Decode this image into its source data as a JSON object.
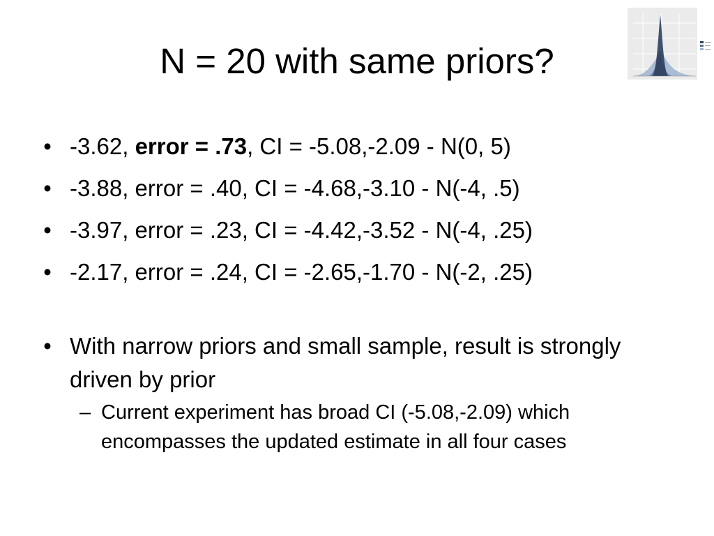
{
  "slide": {
    "title": "N = 20 with same priors?",
    "bullets": [
      {
        "value": "-3.62, ",
        "bold": "error = .73",
        "rest": ", CI = -5.08,-2.09  - N(0, 5)"
      },
      {
        "text": "-3.88, error = .40, CI = -4.68,-3.10  - N(-4, .5)"
      },
      {
        "text": "-3.97, error = .23, CI = -4.42,-3.52  - N(-4, .25)"
      },
      {
        "text": "-2.17, error = .24, CI = -2.65,-1.70  - N(-2, .25)"
      }
    ],
    "conclusion": {
      "text": "With narrow priors and small sample, result is strongly driven by prior",
      "sub": "Current experiment has broad CI (-5.08,-2.09) which encompasses the updated estimate in all four cases"
    },
    "bullet_glyph": "•",
    "dash_glyph": "–"
  },
  "thumbnail": {
    "icon": "density-plot-thumbnail",
    "colors": {
      "panel": "#ebebeb",
      "dark_curve": "#2f3f5f",
      "mid_curve": "#5a7294",
      "light_curve": "#9fb4cf"
    }
  }
}
